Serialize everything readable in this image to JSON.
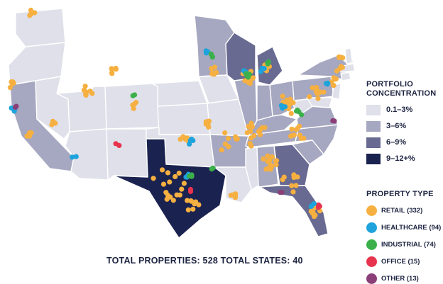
{
  "colors": {
    "tier1": "#dfe0e9",
    "tier2": "#a6a7c0",
    "tier3": "#686a91",
    "tier4": "#1a2250",
    "unowned": "#ffffff",
    "stroke": "#ffffff",
    "text": "#1c2340"
  },
  "legend": {
    "concentration_title": [
      "PORTFOLIO",
      "CONCENTRATION"
    ],
    "concentration": [
      {
        "label": "0.1–3%",
        "color": "#dfe0e9"
      },
      {
        "label": "3–6%",
        "color": "#a6a7c0"
      },
      {
        "label": "6–9%",
        "color": "#686a91"
      },
      {
        "label": "9–12+%",
        "color": "#1a2250"
      }
    ],
    "property_title": "PROPERTY TYPE",
    "property_types": [
      {
        "label": "RETAIL (332)",
        "color": "#f6b041"
      },
      {
        "label": "HEALTHCARE (94)",
        "color": "#1ea3dc"
      },
      {
        "label": "INDUSTRIAL (74)",
        "color": "#3bb04a"
      },
      {
        "label": "OFFICE (15)",
        "color": "#e8334e"
      },
      {
        "label": "OTHER (13)",
        "color": "#8b3f78"
      }
    ]
  },
  "totals": "TOTAL PROPERTIES: 528 TOTAL STATES: 40"
}
